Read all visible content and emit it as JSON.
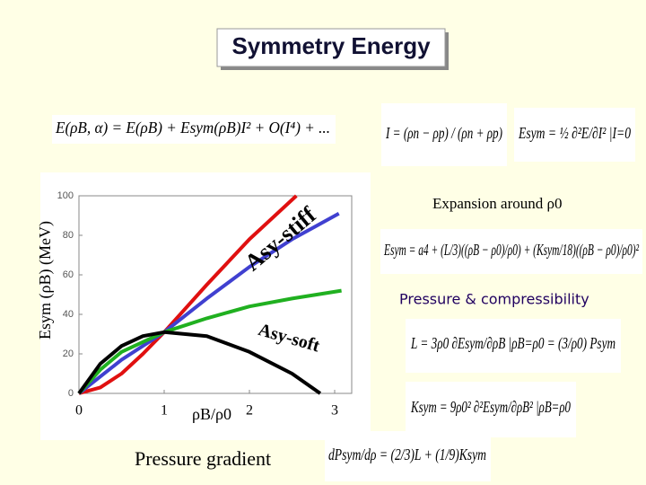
{
  "title": "Symmetry Energy",
  "formulas": [
    "E(ρB, α) = E(ρB) + Esym(ρB)I² + O(I⁴) + ...",
    "I = (ρn − ρp) / (ρn + ρp)",
    "Esym = ½ ∂²E/∂I² |I=0",
    "Esym = a4 + (L/3)((ρB − ρ0)/ρ0) + (Ksym/18)((ρB − ρ0)/ρ0)²",
    "L = 3ρ0 ∂Esym/∂ρB |ρB=ρ0 = (3/ρ0) Psym",
    "Ksym = 9ρ0² ∂²Esym/∂ρB² |ρB=ρ0",
    "dPsym/dρ = (2/3)L + (1/9)Ksym"
  ],
  "labels": {
    "expansion": "Expansion around ρ0",
    "pressure": "Pressure & compressibility",
    "gradient": "Pressure gradient"
  },
  "chart_data": {
    "type": "line",
    "x_label": "ρB/ρ0",
    "y_label": "Esym (ρB) (MeV)",
    "annotations": [
      "Asy-stiff",
      "Asy-soft"
    ],
    "xlim": [
      0,
      3.2
    ],
    "ylim": [
      0,
      100
    ],
    "xticks": [
      0,
      1,
      2,
      3
    ],
    "yticks": [
      0,
      20,
      40,
      60,
      80,
      100
    ],
    "series": [
      {
        "color": "#e01010",
        "x": [
          0,
          0.25,
          0.5,
          0.75,
          1,
          1.5,
          2,
          2.55
        ],
        "values": [
          0,
          3,
          10,
          20,
          31,
          55,
          78,
          100
        ]
      },
      {
        "color": "#4040d0",
        "x": [
          0,
          0.5,
          1,
          1.5,
          2,
          2.5,
          3.05
        ],
        "values": [
          0,
          17,
          31,
          48,
          64,
          78,
          91
        ]
      },
      {
        "color": "#20b020",
        "x": [
          0,
          0.25,
          0.5,
          1,
          1.5,
          2,
          2.5,
          3.08
        ],
        "values": [
          0,
          12,
          21,
          31,
          38,
          44,
          48,
          52
        ]
      },
      {
        "color": "#000000",
        "x": [
          0,
          0.25,
          0.5,
          0.75,
          1,
          1.5,
          2,
          2.5,
          2.83
        ],
        "values": [
          0,
          15,
          24,
          29,
          31,
          29,
          21,
          10,
          0
        ]
      }
    ]
  }
}
